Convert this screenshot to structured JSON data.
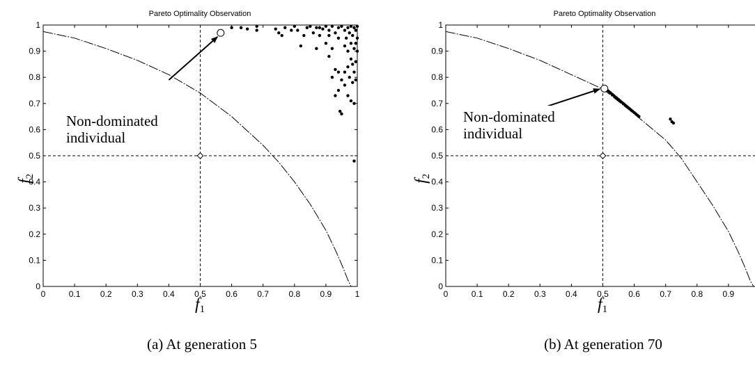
{
  "chart_data": [
    {
      "type": "scatter",
      "title": "Pareto Optimality Observation",
      "xlabel": "f",
      "xlabel_sub": "1",
      "ylabel": "f",
      "ylabel_sub": "2",
      "xlim": [
        0,
        1
      ],
      "ylim": [
        0,
        1
      ],
      "xticks": [
        "0",
        "0.1",
        "0.2",
        "0.3",
        "0.4",
        "0.5",
        "0.6",
        "0.7",
        "0.8",
        "0.9",
        "1"
      ],
      "yticks": [
        "0",
        "0.1",
        "0.2",
        "0.3",
        "0.4",
        "0.5",
        "0.6",
        "0.7",
        "0.8",
        "0.9",
        "1"
      ],
      "grid": false,
      "reference_lines": {
        "x": 0.5,
        "y": 0.5
      },
      "reference_point": [
        0.5,
        0.5
      ],
      "front_curve": [
        [
          0.0,
          0.975
        ],
        [
          0.1,
          0.95
        ],
        [
          0.2,
          0.91
        ],
        [
          0.3,
          0.865
        ],
        [
          0.4,
          0.81
        ],
        [
          0.5,
          0.74
        ],
        [
          0.6,
          0.65
        ],
        [
          0.7,
          0.54
        ],
        [
          0.75,
          0.475
        ],
        [
          0.8,
          0.4
        ],
        [
          0.85,
          0.315
        ],
        [
          0.9,
          0.215
        ],
        [
          0.93,
          0.14
        ],
        [
          0.95,
          0.085
        ],
        [
          0.97,
          0.025
        ],
        [
          0.98,
          0.0
        ]
      ],
      "non_dominated": [
        0.565,
        0.97
      ],
      "annotation": {
        "line1": "Non-dominated",
        "line2": "individual",
        "arrow_from": [
          0.4,
          0.79
        ],
        "arrow_to": [
          0.555,
          0.955
        ]
      },
      "caption": "(a) At generation 5",
      "points": [
        [
          0.6,
          0.99
        ],
        [
          0.63,
          0.99
        ],
        [
          0.65,
          0.985
        ],
        [
          0.68,
          0.98
        ],
        [
          0.68,
          0.995
        ],
        [
          0.74,
          0.985
        ],
        [
          0.75,
          0.97
        ],
        [
          0.76,
          0.96
        ],
        [
          0.77,
          0.99
        ],
        [
          0.79,
          0.98
        ],
        [
          0.8,
          0.995
        ],
        [
          0.81,
          0.98
        ],
        [
          0.82,
          0.92
        ],
        [
          0.83,
          0.96
        ],
        [
          0.84,
          0.99
        ],
        [
          0.85,
          0.995
        ],
        [
          0.86,
          0.97
        ],
        [
          0.87,
          0.91
        ],
        [
          0.87,
          0.99
        ],
        [
          0.88,
          0.99
        ],
        [
          0.88,
          0.96
        ],
        [
          0.89,
          0.985
        ],
        [
          0.9,
          0.995
        ],
        [
          0.9,
          0.93
        ],
        [
          0.91,
          0.98
        ],
        [
          0.91,
          0.96
        ],
        [
          0.91,
          0.88
        ],
        [
          0.92,
          0.995
        ],
        [
          0.92,
          0.91
        ],
        [
          0.92,
          0.8
        ],
        [
          0.93,
          0.97
        ],
        [
          0.93,
          0.83
        ],
        [
          0.93,
          0.73
        ],
        [
          0.94,
          0.99
        ],
        [
          0.94,
          0.95
        ],
        [
          0.94,
          0.82
        ],
        [
          0.94,
          0.75
        ],
        [
          0.945,
          0.67
        ],
        [
          0.95,
          0.995
        ],
        [
          0.95,
          0.66
        ],
        [
          0.95,
          0.79
        ],
        [
          0.96,
          0.98
        ],
        [
          0.96,
          0.92
        ],
        [
          0.96,
          0.82
        ],
        [
          0.96,
          0.77
        ],
        [
          0.965,
          0.95
        ],
        [
          0.97,
          0.99
        ],
        [
          0.97,
          0.9
        ],
        [
          0.97,
          0.84
        ],
        [
          0.97,
          0.73
        ],
        [
          0.975,
          0.97
        ],
        [
          0.975,
          0.8
        ],
        [
          0.98,
          0.995
        ],
        [
          0.98,
          0.93
        ],
        [
          0.98,
          0.87
        ],
        [
          0.98,
          0.71
        ],
        [
          0.985,
          0.96
        ],
        [
          0.985,
          0.85
        ],
        [
          0.985,
          0.78
        ],
        [
          0.99,
          0.99
        ],
        [
          0.99,
          0.91
        ],
        [
          0.99,
          0.82
        ],
        [
          0.99,
          0.7
        ],
        [
          0.99,
          0.48
        ],
        [
          0.995,
          0.98
        ],
        [
          0.995,
          0.93
        ],
        [
          0.995,
          0.86
        ],
        [
          0.995,
          0.79
        ],
        [
          1.0,
          0.995
        ],
        [
          1.0,
          0.95
        ],
        [
          1.0,
          0.9
        ]
      ]
    },
    {
      "type": "scatter",
      "title": "Pareto Optimality Observation",
      "xlabel": "f",
      "xlabel_sub": "1",
      "ylabel": "f",
      "ylabel_sub": "2",
      "xlim": [
        0,
        1
      ],
      "ylim": [
        0,
        1
      ],
      "xticks": [
        "0",
        "0.1",
        "0.2",
        "0.3",
        "0.4",
        "0.5",
        "0.6",
        "0.7",
        "0.8",
        "0.9",
        ""
      ],
      "yticks": [
        "0",
        "0.1",
        "0.2",
        "0.3",
        "0.4",
        "0.5",
        "0.6",
        "0.7",
        "0.8",
        "0.9",
        "1"
      ],
      "grid": false,
      "reference_lines": {
        "x": 0.5,
        "y": 0.5
      },
      "reference_point": [
        0.5,
        0.5
      ],
      "front_curve": [
        [
          0.0,
          0.975
        ],
        [
          0.1,
          0.95
        ],
        [
          0.2,
          0.91
        ],
        [
          0.3,
          0.865
        ],
        [
          0.4,
          0.81
        ],
        [
          0.5,
          0.755
        ],
        [
          0.6,
          0.66
        ],
        [
          0.7,
          0.56
        ],
        [
          0.75,
          0.49
        ],
        [
          0.8,
          0.4
        ],
        [
          0.85,
          0.31
        ],
        [
          0.9,
          0.21
        ],
        [
          0.93,
          0.135
        ],
        [
          0.95,
          0.08
        ],
        [
          0.97,
          0.02
        ],
        [
          0.98,
          0.0
        ]
      ],
      "non_dominated": [
        0.505,
        0.757
      ],
      "annotation": {
        "line1": "Non-dominated",
        "line2": "individual",
        "arrow_from": [
          0.325,
          0.69
        ],
        "arrow_to": [
          0.49,
          0.755
        ]
      },
      "caption": "(b) At generation 70",
      "points": [
        [
          0.51,
          0.755
        ],
        [
          0.515,
          0.75
        ],
        [
          0.52,
          0.745
        ],
        [
          0.525,
          0.74
        ],
        [
          0.53,
          0.735
        ],
        [
          0.535,
          0.73
        ],
        [
          0.54,
          0.725
        ],
        [
          0.545,
          0.72
        ],
        [
          0.55,
          0.715
        ],
        [
          0.555,
          0.71
        ],
        [
          0.56,
          0.705
        ],
        [
          0.565,
          0.7
        ],
        [
          0.57,
          0.695
        ],
        [
          0.575,
          0.69
        ],
        [
          0.58,
          0.685
        ],
        [
          0.585,
          0.68
        ],
        [
          0.59,
          0.675
        ],
        [
          0.595,
          0.67
        ],
        [
          0.6,
          0.665
        ],
        [
          0.605,
          0.66
        ],
        [
          0.61,
          0.655
        ],
        [
          0.615,
          0.65
        ],
        [
          0.715,
          0.64
        ],
        [
          0.72,
          0.63
        ],
        [
          0.725,
          0.625
        ]
      ]
    }
  ]
}
